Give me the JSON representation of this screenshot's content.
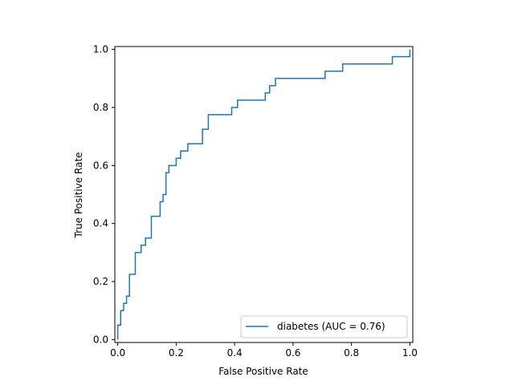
{
  "chart_data": {
    "type": "line",
    "title": "",
    "xlabel": "False Positive Rate",
    "ylabel": "True Positive Rate",
    "xlim": [
      -0.01,
      1.01
    ],
    "ylim": [
      -0.01,
      1.01
    ],
    "x_ticks": [
      "0.0",
      "0.2",
      "0.4",
      "0.6",
      "0.8",
      "1.0"
    ],
    "y_ticks": [
      "0.0",
      "0.2",
      "0.4",
      "0.6",
      "0.8",
      "1.0"
    ],
    "grid": false,
    "legend_position": "lower-right",
    "colors": {
      "series": "#1f77b4"
    },
    "series": [
      {
        "name": "diabetes (AUC = 0.76)",
        "x": [
          0.0,
          0.0,
          0.0,
          0.01,
          0.01,
          0.02,
          0.02,
          0.03,
          0.03,
          0.04,
          0.04,
          0.05,
          0.05,
          0.06,
          0.06,
          0.08,
          0.08,
          0.095,
          0.095,
          0.115,
          0.115,
          0.145,
          0.145,
          0.155,
          0.155,
          0.165,
          0.165,
          0.175,
          0.175,
          0.2,
          0.2,
          0.215,
          0.215,
          0.24,
          0.24,
          0.29,
          0.29,
          0.31,
          0.31,
          0.39,
          0.39,
          0.41,
          0.41,
          0.505,
          0.505,
          0.52,
          0.52,
          0.54,
          0.54,
          0.71,
          0.71,
          0.77,
          0.77,
          0.94,
          0.94,
          1.0,
          1.0
        ],
        "y": [
          0.0,
          0.05,
          0.05,
          0.05,
          0.1,
          0.1,
          0.125,
          0.125,
          0.15,
          0.15,
          0.225,
          0.225,
          0.225,
          0.225,
          0.3,
          0.3,
          0.325,
          0.325,
          0.35,
          0.35,
          0.425,
          0.425,
          0.475,
          0.475,
          0.5,
          0.5,
          0.575,
          0.575,
          0.6,
          0.6,
          0.625,
          0.625,
          0.65,
          0.65,
          0.675,
          0.675,
          0.725,
          0.725,
          0.775,
          0.775,
          0.8,
          0.8,
          0.825,
          0.825,
          0.85,
          0.85,
          0.875,
          0.875,
          0.9,
          0.9,
          0.925,
          0.925,
          0.95,
          0.95,
          0.975,
          0.975,
          1.0
        ]
      }
    ]
  }
}
